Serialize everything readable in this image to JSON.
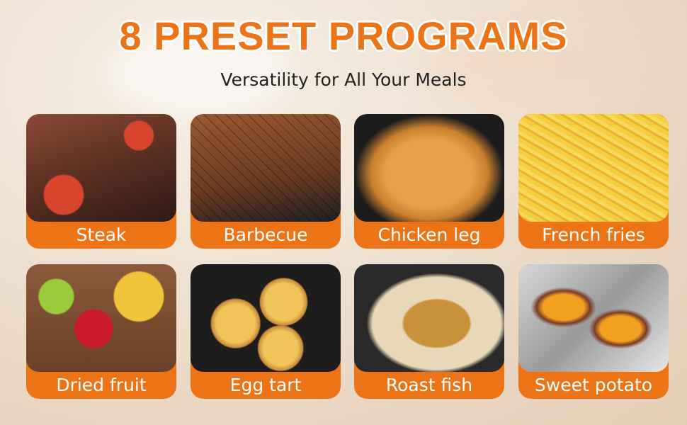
{
  "header": {
    "title": "8 PRESET PROGRAMS",
    "subtitle": "Versatility for All Your Meals"
  },
  "accent_color": "#ec7416",
  "programs": [
    {
      "label": "Steak",
      "image": "steak-photo"
    },
    {
      "label": "Barbecue",
      "image": "barbecue-skewers-photo"
    },
    {
      "label": "Chicken leg",
      "image": "fried-chicken-photo"
    },
    {
      "label": "French fries",
      "image": "french-fries-photo"
    },
    {
      "label": "Dried fruit",
      "image": "dried-fruit-photo"
    },
    {
      "label": "Egg tart",
      "image": "egg-tart-photo"
    },
    {
      "label": "Roast fish",
      "image": "roast-fish-photo"
    },
    {
      "label": "Sweet potato",
      "image": "sweet-potato-photo"
    }
  ]
}
